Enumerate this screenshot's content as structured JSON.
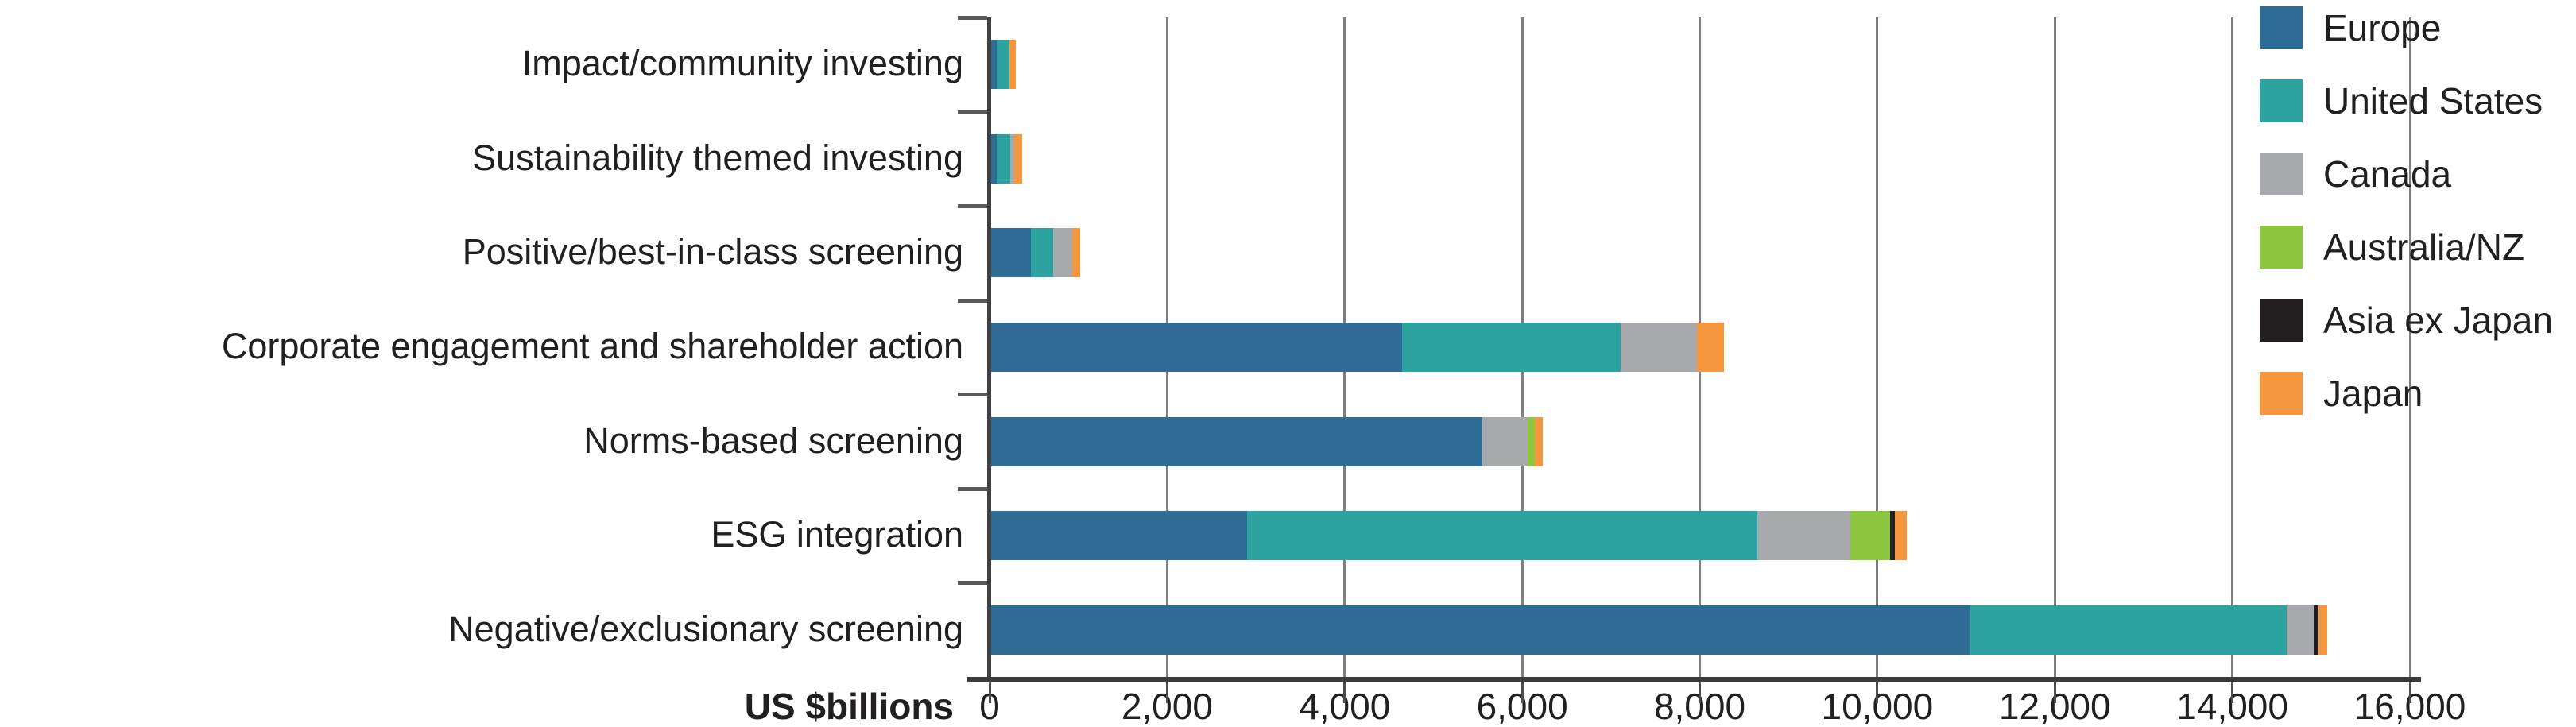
{
  "chart_data": {
    "type": "bar",
    "orientation": "horizontal-stacked",
    "title": "",
    "xlabel": "US $billions",
    "ylabel": "",
    "xlim": [
      0,
      16000
    ],
    "x_tick_step": 2000,
    "x_tick_labels": [
      "0",
      "2,000",
      "4,000",
      "6,000",
      "8,000",
      "10,000",
      "12,000",
      "14,000",
      "16,000"
    ],
    "grid": true,
    "legend_position": "top-right",
    "categories": [
      "Impact/community investing",
      "Sustainability themed investing",
      "Positive/best-in-class screening",
      "Corporate engagement and shareholder action",
      "Norms-based screening",
      "ESG integration",
      "Negative/exclusionary screening"
    ],
    "series": [
      {
        "name": "Europe",
        "color": "#2e6c96",
        "values": [
          85,
          80,
          465,
          4650,
          5550,
          2900,
          11050
        ]
      },
      {
        "name": "United States",
        "color": "#2ca3a0",
        "values": [
          135,
          150,
          255,
          2460,
          0,
          5750,
          3560
        ]
      },
      {
        "name": "Canada",
        "color": "#a7a9ac",
        "values": [
          0,
          45,
          210,
          860,
          510,
          1050,
          310
        ]
      },
      {
        "name": "Australia/NZ",
        "color": "#8dc63f",
        "values": [
          0,
          0,
          0,
          0,
          85,
          440,
          0
        ]
      },
      {
        "name": "Asia ex Japan",
        "color": "#231f20",
        "values": [
          0,
          0,
          0,
          0,
          0,
          55,
          55
        ]
      },
      {
        "name": "Japan",
        "color": "#f5973f",
        "values": [
          80,
          90,
          95,
          300,
          85,
          135,
          90
        ]
      }
    ]
  },
  "axis": {
    "x_title": "US $billions"
  }
}
